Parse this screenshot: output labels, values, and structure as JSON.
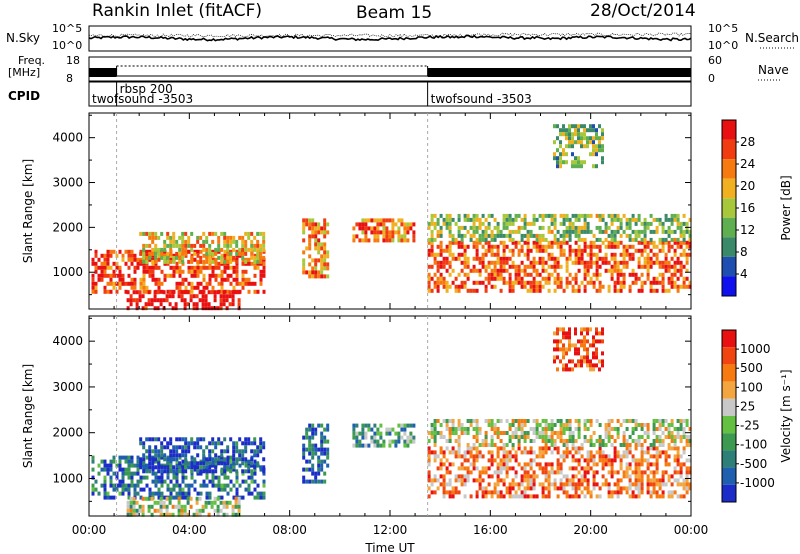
{
  "header": {
    "station": "Rankin Inlet (fitACF)",
    "beam": "Beam 15",
    "date": "28/Oct/2014"
  },
  "strips": {
    "nsky_label": "N.Sky",
    "nsearch_label": "N.Search",
    "nsky_ticks": [
      "10^5",
      "10^0"
    ],
    "nsearch_ticks": [
      "10^5",
      "10^0"
    ],
    "freq_label_1": "Freq.",
    "freq_label_2": "[MHz]",
    "freq_ticks": [
      "18",
      "8"
    ],
    "nave_label": "Nave",
    "nave_ticks": [
      "60",
      "0"
    ],
    "cpid_label": "CPID",
    "cpid_segments": [
      {
        "name": "twofsound -3503",
        "start": 0.0,
        "end": 1.1
      },
      {
        "name": "rbsp 200",
        "start": 1.1,
        "end": 13.5
      },
      {
        "name": "twofsound -3503",
        "start": 13.5,
        "end": 24.0
      }
    ]
  },
  "chart_data": [
    {
      "type": "heatmap",
      "name": "power",
      "ylabel": "Slant Range [km]",
      "ylim": [
        180,
        4550
      ],
      "xlim": [
        0,
        24
      ],
      "y_ticks": [
        1000,
        2000,
        3000,
        4000
      ],
      "colorbar_label": "Power [dB]",
      "colorbar_ticks": [
        "28",
        "24",
        "20",
        "16",
        "12",
        "8",
        "4"
      ],
      "colors": [
        "#1010ee",
        "#1d4eb0",
        "#3a8a6a",
        "#5fae50",
        "#a8c83c",
        "#f0b020",
        "#f77a10",
        "#f03c10",
        "#e81010"
      ],
      "regions": [
        {
          "t0": 0.1,
          "t1": 7.0,
          "r0": 600,
          "r1": 1500,
          "level": 0.85
        },
        {
          "t0": 1.5,
          "t1": 6.0,
          "r0": 220,
          "r1": 600,
          "level": 1.0
        },
        {
          "t0": 2.0,
          "t1": 7.0,
          "r0": 1200,
          "r1": 1900,
          "level": 0.6
        },
        {
          "t0": 8.5,
          "t1": 9.5,
          "r0": 900,
          "r1": 2200,
          "level": 0.7
        },
        {
          "t0": 10.5,
          "t1": 13.0,
          "r0": 1700,
          "r1": 2200,
          "level": 0.75
        },
        {
          "t0": 13.5,
          "t1": 24.0,
          "r0": 600,
          "r1": 1700,
          "level": 0.8
        },
        {
          "t0": 13.5,
          "t1": 24.0,
          "r0": 1700,
          "r1": 2300,
          "level": 0.45
        },
        {
          "t0": 18.5,
          "t1": 20.5,
          "r0": 3400,
          "r1": 4300,
          "level": 0.4
        }
      ]
    },
    {
      "type": "heatmap",
      "name": "velocity",
      "ylabel": "Slant Range [km]",
      "xlabel": "Time UT",
      "ylim": [
        180,
        4550
      ],
      "xlim": [
        0,
        24
      ],
      "y_ticks": [
        1000,
        2000,
        3000,
        4000
      ],
      "x_ticks": [
        "00:00",
        "04:00",
        "08:00",
        "12:00",
        "16:00",
        "20:00",
        "00:00"
      ],
      "colorbar_label": "Velocity [m s⁻¹]",
      "colorbar_ticks": [
        "1000",
        "500",
        "100",
        "25",
        "-25",
        "-100",
        "-500",
        "-1000"
      ],
      "colors": [
        "#1c2cc8",
        "#1f5fb0",
        "#2e7f78",
        "#3c9a50",
        "#64c040",
        "#c8c8c8",
        "#f3a640",
        "#f77a10",
        "#f04510",
        "#e81010"
      ],
      "regions": [
        {
          "t0": 0.1,
          "t1": 7.0,
          "r0": 600,
          "r1": 1500,
          "level": 0.2
        },
        {
          "t0": 1.5,
          "t1": 6.0,
          "r0": 220,
          "r1": 600,
          "level": 0.5
        },
        {
          "t0": 2.0,
          "t1": 7.0,
          "r0": 1200,
          "r1": 1900,
          "level": 0.1
        },
        {
          "t0": 8.5,
          "t1": 9.5,
          "r0": 900,
          "r1": 2200,
          "level": 0.15
        },
        {
          "t0": 10.5,
          "t1": 13.0,
          "r0": 1700,
          "r1": 2200,
          "level": 0.35
        },
        {
          "t0": 13.5,
          "t1": 24.0,
          "r0": 600,
          "r1": 1700,
          "level": 0.75
        },
        {
          "t0": 13.5,
          "t1": 24.0,
          "r0": 1700,
          "r1": 2300,
          "level": 0.55
        },
        {
          "t0": 18.5,
          "t1": 20.5,
          "r0": 3400,
          "r1": 4300,
          "level": 0.85
        }
      ]
    }
  ]
}
